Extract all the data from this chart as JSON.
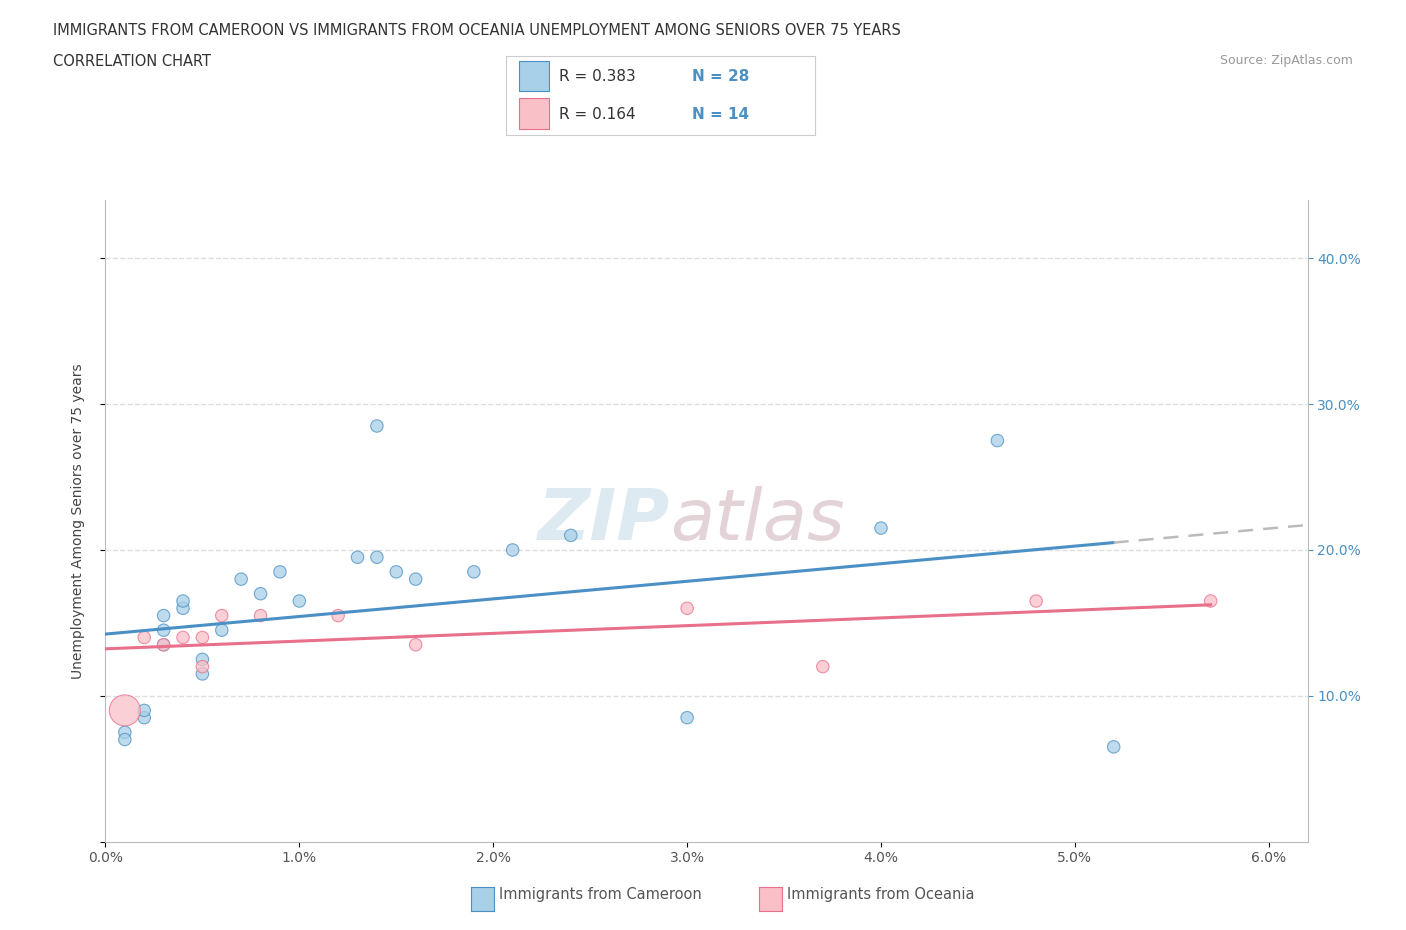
{
  "title_line1": "IMMIGRANTS FROM CAMEROON VS IMMIGRANTS FROM OCEANIA UNEMPLOYMENT AMONG SENIORS OVER 75 YEARS",
  "title_line2": "CORRELATION CHART",
  "source_text": "Source: ZipAtlas.com",
  "ylabel": "Unemployment Among Seniors over 75 years",
  "xlim": [
    0.0,
    0.062
  ],
  "ylim": [
    0.0,
    0.44
  ],
  "xticks": [
    0.0,
    0.01,
    0.02,
    0.03,
    0.04,
    0.05,
    0.06
  ],
  "xticklabels": [
    "0.0%",
    "1.0%",
    "2.0%",
    "3.0%",
    "4.0%",
    "5.0%",
    "6.0%"
  ],
  "yticks_right": [
    0.1,
    0.2,
    0.3,
    0.4
  ],
  "yticklabels_right": [
    "10.0%",
    "20.0%",
    "30.0%",
    "40.0%"
  ],
  "legend_R1": "R = 0.383",
  "legend_N1": "N = 28",
  "legend_R2": "R = 0.164",
  "legend_N2": "N = 14",
  "blue_color": "#A8D0E8",
  "pink_color": "#F9C0C8",
  "blue_line_color": "#4A90C4",
  "pink_line_color": "#E8708A",
  "dashed_line_color": "#BBBBBB",
  "cameroon_x": [
    0.001,
    0.001,
    0.002,
    0.002,
    0.003,
    0.003,
    0.003,
    0.004,
    0.004,
    0.005,
    0.005,
    0.006,
    0.007,
    0.008,
    0.009,
    0.01,
    0.013,
    0.014,
    0.014,
    0.015,
    0.016,
    0.019,
    0.021,
    0.024,
    0.03,
    0.04,
    0.046,
    0.052
  ],
  "cameroon_y": [
    0.075,
    0.07,
    0.085,
    0.09,
    0.135,
    0.145,
    0.155,
    0.16,
    0.165,
    0.115,
    0.125,
    0.145,
    0.18,
    0.17,
    0.185,
    0.165,
    0.195,
    0.285,
    0.195,
    0.185,
    0.18,
    0.185,
    0.2,
    0.21,
    0.085,
    0.215,
    0.275,
    0.065
  ],
  "cameroon_sizes": [
    80,
    80,
    80,
    80,
    80,
    80,
    80,
    80,
    80,
    80,
    80,
    80,
    80,
    80,
    80,
    80,
    80,
    80,
    80,
    80,
    80,
    80,
    80,
    80,
    80,
    80,
    80,
    80
  ],
  "oceania_x": [
    0.001,
    0.002,
    0.003,
    0.004,
    0.005,
    0.005,
    0.006,
    0.008,
    0.012,
    0.016,
    0.03,
    0.037,
    0.048,
    0.057
  ],
  "oceania_y": [
    0.09,
    0.14,
    0.135,
    0.14,
    0.12,
    0.14,
    0.155,
    0.155,
    0.155,
    0.135,
    0.16,
    0.12,
    0.165,
    0.165
  ],
  "oceania_sizes": [
    500,
    80,
    80,
    80,
    80,
    80,
    80,
    80,
    80,
    80,
    80,
    80,
    80,
    80
  ],
  "bg_color": "#FFFFFF",
  "grid_color": "#DEDEDE",
  "watermark_color": "#D8E8F0"
}
